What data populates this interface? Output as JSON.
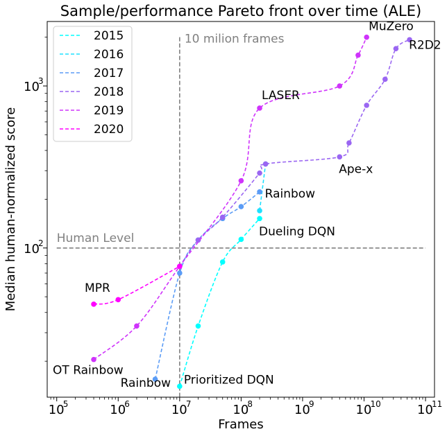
{
  "chart_data": {
    "type": "line",
    "title": "Sample/performance Pareto front over time (ALE)",
    "xlabel": "Frames",
    "ylabel": "Median human-normalized score",
    "xscale": "log",
    "yscale": "log",
    "xlim": [
      70000,
      140000000000
    ],
    "ylim": [
      12,
      2500
    ],
    "xticks": [
      {
        "value": 100000,
        "base": "10",
        "exp": "5"
      },
      {
        "value": 1000000,
        "base": "10",
        "exp": "6"
      },
      {
        "value": 10000000,
        "base": "10",
        "exp": "7"
      },
      {
        "value": 100000000,
        "base": "10",
        "exp": "8"
      },
      {
        "value": 1000000000,
        "base": "10",
        "exp": "9"
      },
      {
        "value": 10000000000,
        "base": "10",
        "exp": "10"
      },
      {
        "value": 100000000000,
        "base": "10",
        "exp": "11"
      }
    ],
    "yticks": [
      {
        "value": 100,
        "base": "10",
        "exp": "2"
      },
      {
        "value": 1000,
        "base": "10",
        "exp": "3"
      }
    ],
    "legend_position": "top-left",
    "series": [
      {
        "name": "2015",
        "color": "#00ffff",
        "x": [
          10000000,
          20000000,
          50000000,
          100000000,
          200000000
        ],
        "y": [
          14,
          33,
          82,
          113,
          152
        ]
      },
      {
        "name": "2016",
        "color": "#1fe0ff",
        "x": [
          200000000,
          250000000
        ],
        "y": [
          170,
          330
        ]
      },
      {
        "name": "2017",
        "color": "#5b9cf6",
        "x": [
          4000000,
          10000000,
          20000000,
          50000000,
          100000000,
          200000000
        ],
        "y": [
          15.5,
          70,
          112,
          152,
          180,
          222
        ]
      },
      {
        "name": "2018",
        "color": "#9a66f2",
        "x": [
          10000000,
          20000000,
          50000000,
          200000000,
          250000000,
          4000000000,
          5700000000,
          11000000000,
          22000000000,
          33000000000,
          55000000000
        ],
        "y": [
          77,
          112,
          155,
          290,
          330,
          365,
          445,
          760,
          1100,
          1700,
          1930
        ]
      },
      {
        "name": "2019",
        "color": "#cf33fb",
        "x": [
          400000,
          2000000,
          10000000,
          100000000,
          200000000,
          4000000000,
          8000000000,
          11000000000
        ],
        "y": [
          20.5,
          33,
          77,
          260,
          730,
          1000,
          1550,
          2000
        ]
      },
      {
        "name": "2020",
        "color": "#ff00ff",
        "x": [
          400000,
          1000000,
          10000000
        ],
        "y": [
          45,
          48,
          77
        ]
      }
    ],
    "reference_lines": [
      {
        "orientation": "horizontal",
        "value": 100,
        "label": "Human Level",
        "color": "#808080"
      },
      {
        "orientation": "vertical",
        "value": 10000000,
        "label": "10 milion frames",
        "color": "#808080"
      }
    ],
    "annotations": [
      {
        "text": "MuZero",
        "x": 11000000000,
        "y": 2000
      },
      {
        "text": "R2D2",
        "x": 55000000000,
        "y": 1930
      },
      {
        "text": "LASER",
        "x": 200000000,
        "y": 730
      },
      {
        "text": "Ape-x",
        "x": 4000000000,
        "y": 365
      },
      {
        "text": "Rainbow",
        "x": 250000000,
        "y": 222
      },
      {
        "text": "Dueling DQN",
        "x": 200000000,
        "y": 152
      },
      {
        "text": "MPR",
        "x": 400000,
        "y": 45
      },
      {
        "text": "OT Rainbow",
        "x": 400000,
        "y": 20.5
      },
      {
        "text": "Rainbow",
        "x": 4000000,
        "y": 15.5
      },
      {
        "text": "Prioritized DQN",
        "x": 10000000,
        "y": 14
      }
    ]
  }
}
